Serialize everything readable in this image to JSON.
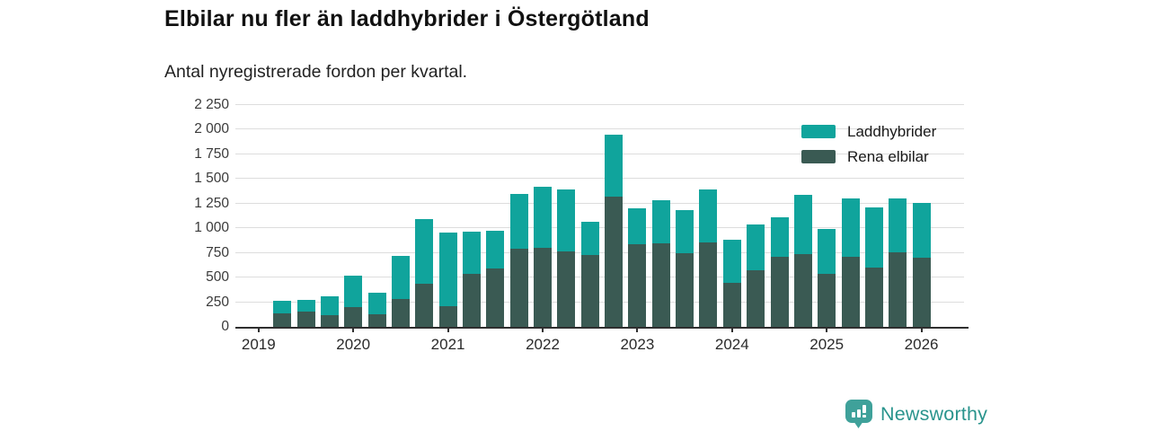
{
  "title": "Elbilar nu fler än laddhybrider i Östergötland",
  "subtitle": "Antal nyregistrerade fordon per kvartal.",
  "legend": [
    {
      "label": "Laddhybrider",
      "color": "#10a49c"
    },
    {
      "label": "Rena elbilar",
      "color": "#3a5a53"
    }
  ],
  "footer": {
    "brand": "Newsworthy",
    "logo_icon": "bar-chart-speech-bubble-icon",
    "brand_color": "#2a948d",
    "icon_color": "#3fa19a"
  },
  "chart_data": {
    "type": "bar",
    "stacked": true,
    "stack_order_bottom_to_top": [
      "Rena elbilar",
      "Laddhybrider"
    ],
    "title": "Elbilar nu fler än laddhybrider i Östergötland",
    "subtitle": "Antal nyregistrerade fordon per kvartal.",
    "xlabel": "",
    "ylabel": "",
    "x": [
      "2019 Q2",
      "2019 Q3",
      "2019 Q4",
      "2020 Q1",
      "2020 Q2",
      "2020 Q3",
      "2020 Q4",
      "2021 Q1",
      "2021 Q2",
      "2021 Q3",
      "2021 Q4",
      "2022 Q1",
      "2022 Q2",
      "2022 Q3",
      "2022 Q4",
      "2023 Q1",
      "2023 Q2",
      "2023 Q3",
      "2023 Q4",
      "2024 Q1",
      "2024 Q2",
      "2024 Q3",
      "2024 Q4",
      "2025 Q1",
      "2025 Q2",
      "2025 Q3",
      "2025 Q4",
      "2026 Q1"
    ],
    "series": [
      {
        "name": "Rena elbilar",
        "color": "#3a5a53",
        "values": [
          140,
          155,
          120,
          205,
          130,
          280,
          440,
          210,
          535,
          595,
          790,
          805,
          765,
          730,
          1320,
          840,
          845,
          750,
          860,
          445,
          575,
          715,
          735,
          535,
          710,
          600,
          760,
          700
        ]
      },
      {
        "name": "Laddhybrider",
        "color": "#10a49c",
        "values": [
          120,
          120,
          190,
          310,
          215,
          440,
          655,
          745,
          430,
          380,
          555,
          615,
          625,
          335,
          625,
          365,
          440,
          430,
          535,
          435,
          465,
          395,
          605,
          455,
          595,
          610,
          540,
          555
        ]
      }
    ],
    "ylim": [
      0,
      2250
    ],
    "yticks": [
      0,
      250,
      500,
      750,
      1000,
      1250,
      1500,
      1750,
      2000,
      2250
    ],
    "ytick_labels": [
      "0",
      "250",
      "500",
      "750",
      "1 000",
      "1 250",
      "1 500",
      "1 750",
      "2 000",
      "2 250"
    ],
    "xticks": [
      "2019",
      "2020",
      "2021",
      "2022",
      "2023",
      "2024",
      "2025",
      "2026"
    ],
    "grid": true,
    "legend_position": "top-right",
    "gridline_color": "#dddddd",
    "axis_color": "#2f2f2f"
  }
}
